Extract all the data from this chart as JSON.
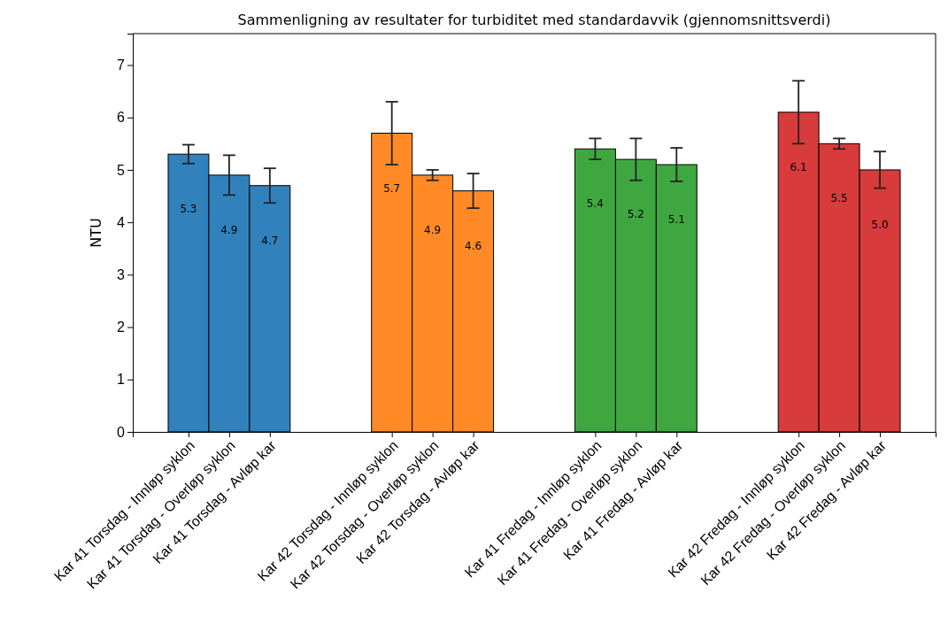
{
  "chart_data": {
    "type": "bar",
    "title": "Sammenligning av resultater for turbiditet med standardavvik (gjennomsnittsverdi)",
    "ylabel": "NTU",
    "categories": [
      "Kar 41 Torsdag - Innløp syklon",
      "Kar 41 Torsdag - Overløp syklon",
      "Kar 41 Torsdag - Avløp kar",
      null,
      null,
      "Kar 42 Torsdag - Innløp syklon",
      "Kar 42 Torsdag - Overløp syklon",
      "Kar 42 Torsdag - Avløp kar",
      null,
      null,
      "Kar 41 Fredag - Innløp syklon",
      "Kar 41 Fredag - Overløp syklon",
      "Kar 41 Fredag - Avløp kar",
      null,
      null,
      "Kar 42 Fredag - Innløp syklon",
      "Kar 42 Fredag - Overløp syklon",
      "Kar 42 Fredag - Avløp kar"
    ],
    "values": [
      5.3,
      4.9,
      4.7,
      null,
      null,
      5.7,
      4.9,
      4.6,
      null,
      null,
      5.4,
      5.2,
      5.1,
      null,
      null,
      6.1,
      5.5,
      5.0
    ],
    "value_labels": [
      "5.3",
      "4.9",
      "4.7",
      null,
      null,
      "5.7",
      "4.9",
      "4.6",
      null,
      null,
      "5.4",
      "5.2",
      "5.1",
      null,
      null,
      "6.1",
      "5.5",
      "5.0"
    ],
    "errors": [
      0.18,
      0.38,
      0.33,
      null,
      null,
      0.6,
      0.1,
      0.33,
      null,
      null,
      0.2,
      0.4,
      0.32,
      null,
      null,
      0.6,
      0.1,
      0.35
    ],
    "colors": [
      "#3181bd",
      "#3181bd",
      "#3181bd",
      null,
      null,
      "#ff8a26",
      "#ff8a26",
      "#ff8a26",
      null,
      null,
      "#3fa73f",
      "#3fa73f",
      "#3fa73f",
      null,
      null,
      "#d83b3c",
      "#d83b3c",
      "#d83b3c"
    ],
    "ylim": [
      0,
      7.6
    ],
    "yticks": [
      0,
      1,
      2,
      3,
      4,
      5,
      6,
      7
    ],
    "grid": false
  }
}
